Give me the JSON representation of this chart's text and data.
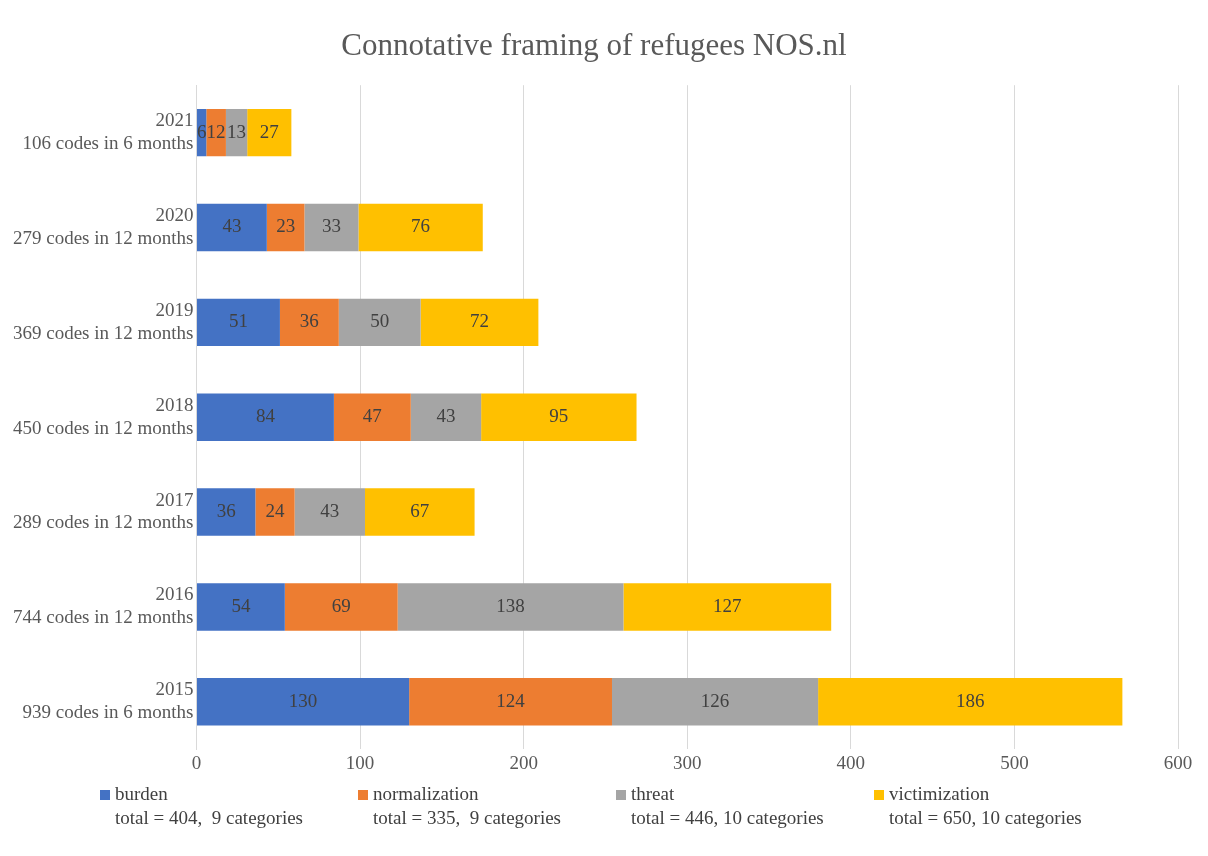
{
  "chart_data": {
    "type": "bar",
    "orientation": "horizontal",
    "stacked": true,
    "title": "Connotative framing of refugees NOS.nl",
    "categories": [
      "2021\n106 codes in 6 months",
      "2020\n279 codes in 12 months",
      "2019\n369 codes in 12 months",
      "2018\n450 codes in 12 months",
      "2017\n289 codes in 12 months",
      "2016\n744 codes in 12 months",
      "2015\n939 codes in 6 months"
    ],
    "series": [
      {
        "name": "burden",
        "color": "#4472c4",
        "values": [
          6,
          43,
          51,
          84,
          36,
          54,
          130
        ]
      },
      {
        "name": "normalization",
        "color": "#ed7d31",
        "values": [
          12,
          23,
          36,
          47,
          24,
          69,
          124
        ]
      },
      {
        "name": "threat",
        "color": "#a5a5a5",
        "values": [
          13,
          33,
          50,
          43,
          43,
          138,
          126
        ]
      },
      {
        "name": "victimization",
        "color": "#ffc000",
        "values": [
          27,
          76,
          72,
          95,
          67,
          127,
          186
        ]
      }
    ],
    "xlim": [
      0,
      600
    ],
    "xticks": [
      0,
      100,
      200,
      300,
      400,
      500,
      600
    ],
    "grid": "x",
    "legend": "bottom",
    "data_labels": true,
    "annotations": [
      "total = 404,  9 categories",
      "total = 335,  9 categories",
      "total = 446, 10 categories",
      "total = 650, 10 categories"
    ]
  }
}
